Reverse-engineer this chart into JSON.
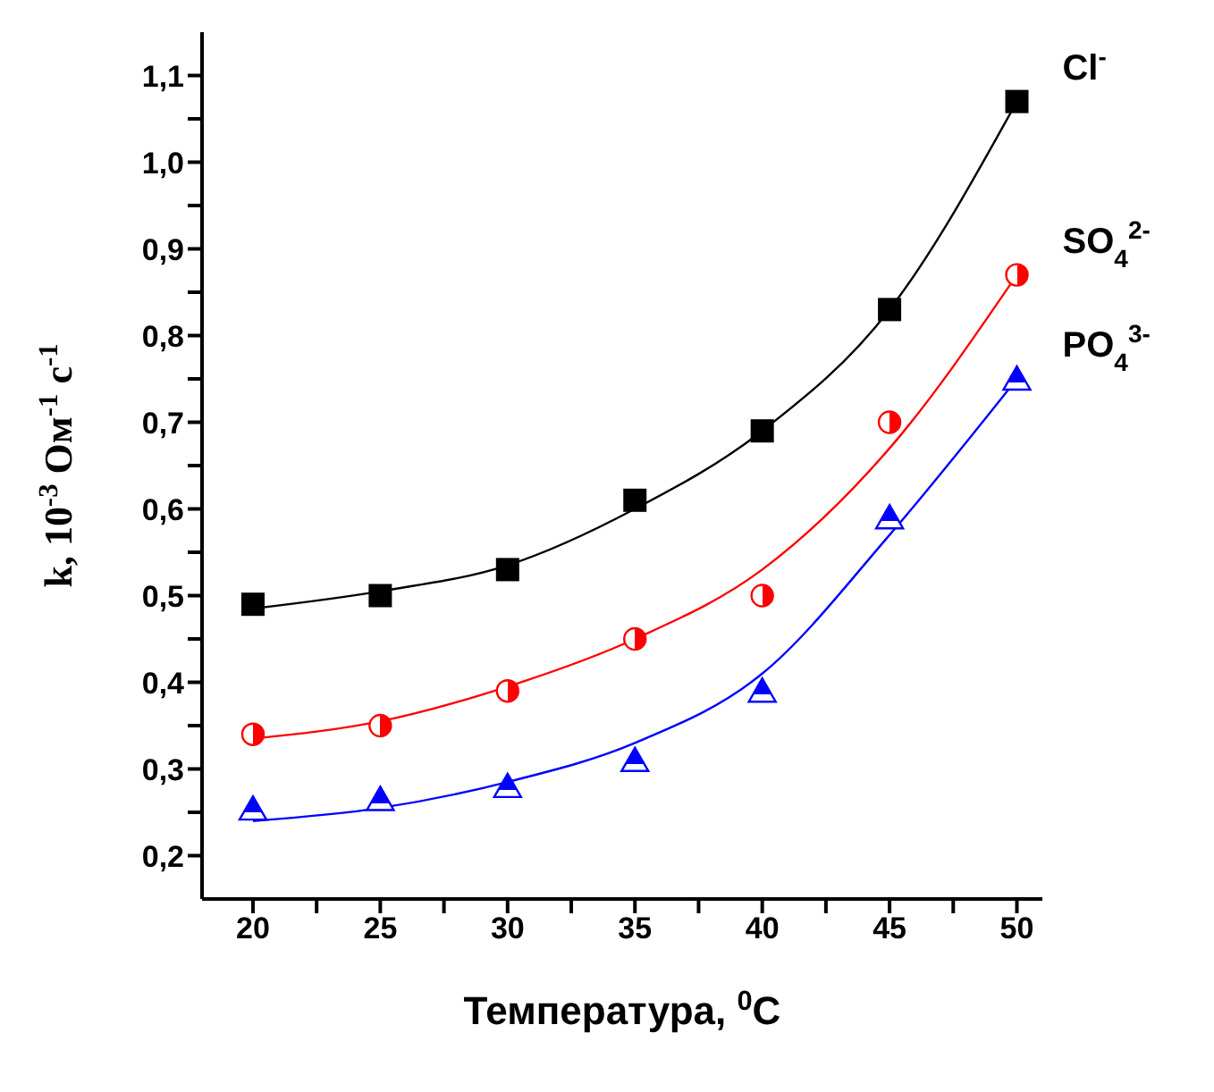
{
  "chart_data": {
    "type": "scatter",
    "xlabel": "Температура, $^{0}$C",
    "ylabel": "k, 10$^{-3}$ Ом$^{-1}$ с$^{-1}$",
    "x": [
      20,
      25,
      30,
      35,
      40,
      45,
      50
    ],
    "series": [
      {
        "name": "Cl$^{-}$",
        "color": "#000000",
        "marker": "square",
        "values": [
          0.49,
          0.5,
          0.53,
          0.61,
          0.69,
          0.83,
          1.07
        ]
      },
      {
        "name": "SO$_{4}$$^{2-}$",
        "color": "#ff0000",
        "marker": "circle",
        "values": [
          0.34,
          0.35,
          0.39,
          0.45,
          0.5,
          0.7,
          0.87
        ]
      },
      {
        "name": "PO$_{4}$$^{3-}$",
        "color": "#0000ff",
        "marker": "triangle",
        "values": [
          0.254,
          0.265,
          0.28,
          0.31,
          0.39,
          0.59,
          0.75
        ]
      },
      {
        "type": "line",
        "color": "#000000",
        "marker": "none",
        "x": [
          20,
          25,
          30,
          35,
          40,
          45,
          50
        ],
        "values": [
          0.485,
          0.505,
          0.535,
          0.6,
          0.69,
          0.83,
          1.07
        ]
      },
      {
        "type": "line",
        "color": "#ff0000",
        "marker": "none",
        "x": [
          20,
          25,
          30,
          35,
          40,
          45,
          50
        ],
        "values": [
          0.335,
          0.355,
          0.395,
          0.45,
          0.53,
          0.67,
          0.87
        ]
      },
      {
        "type": "line",
        "color": "#0000ff",
        "marker": "none",
        "x": [
          20,
          25,
          30,
          35,
          40,
          45,
          50
        ],
        "values": [
          0.24,
          0.255,
          0.285,
          0.33,
          0.41,
          0.57,
          0.75
        ]
      }
    ],
    "xlim": [
      18,
      51
    ],
    "xticks": [
      20,
      {
        "value": 22.5,
        "label": null
      },
      25,
      {
        "value": 27.5,
        "label": null
      },
      30,
      {
        "value": 32.5,
        "label": null
      },
      35,
      {
        "value": 37.5,
        "label": null
      },
      40,
      {
        "value": 42.5,
        "label": null
      },
      45,
      {
        "value": 47.5,
        "label": null
      },
      50
    ],
    "ylim": [
      0.15,
      1.15
    ],
    "yticks": [
      {
        "value": 0.2,
        "label": "0,2"
      },
      {
        "value": 0.25,
        "label": null
      },
      {
        "value": 0.3,
        "label": "0,3"
      },
      {
        "value": 0.35,
        "label": null
      },
      {
        "value": 0.4,
        "label": "0,4"
      },
      {
        "value": 0.45,
        "label": null
      },
      {
        "value": 0.5,
        "label": "0,5"
      },
      {
        "value": 0.55,
        "label": null
      },
      {
        "value": 0.6,
        "label": "0,6"
      },
      {
        "value": 0.65,
        "label": null
      },
      {
        "value": 0.7,
        "label": "0,7"
      },
      {
        "value": 0.75,
        "label": null
      },
      {
        "value": 0.8,
        "label": "0,8"
      },
      {
        "value": 0.85,
        "label": null
      },
      {
        "value": 0.9,
        "label": "0,9"
      },
      {
        "value": 0.95,
        "label": null
      },
      {
        "value": 1.0,
        "label": "1,0"
      },
      {
        "value": 1.05,
        "label": null
      },
      {
        "value": 1.1,
        "label": "1,1"
      }
    ],
    "grid": false,
    "legend": false,
    "line_style": "solid"
  }
}
